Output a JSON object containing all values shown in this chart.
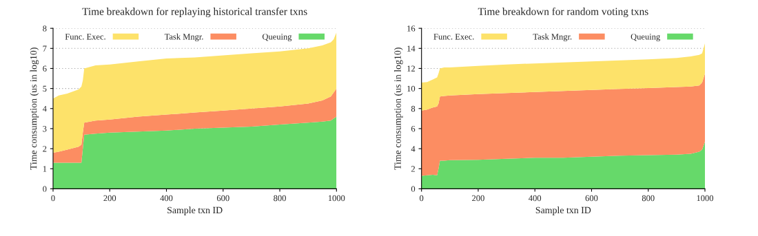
{
  "chart_data": [
    {
      "type": "area",
      "stacked": true,
      "title": "Time breakdown for replaying historical transfer txns",
      "xlabel": "Sample txn ID",
      "ylabel": "Time consumption (us in log10)",
      "x": [
        0,
        20,
        50,
        90,
        100,
        105,
        110,
        150,
        200,
        300,
        400,
        500,
        600,
        700,
        800,
        900,
        950,
        980,
        990,
        1000
      ],
      "series": [
        {
          "name": "Queuing",
          "color": "#66d96a",
          "values": [
            1.3,
            1.3,
            1.3,
            1.3,
            1.3,
            2.0,
            2.7,
            2.75,
            2.8,
            2.85,
            2.9,
            3.0,
            3.05,
            3.1,
            3.2,
            3.3,
            3.35,
            3.4,
            3.5,
            3.6
          ]
        },
        {
          "name": "Task Mngr.",
          "color": "#fc8d62",
          "values": [
            0.5,
            0.55,
            0.65,
            0.8,
            0.9,
            0.8,
            0.6,
            0.65,
            0.65,
            0.75,
            0.8,
            0.8,
            0.85,
            0.9,
            0.9,
            0.95,
            1.05,
            1.2,
            1.3,
            1.4
          ]
        },
        {
          "name": "Func. Exec.",
          "color": "#fde26a",
          "values": [
            2.7,
            2.8,
            2.8,
            2.85,
            2.9,
            2.6,
            2.7,
            2.75,
            2.75,
            2.75,
            2.8,
            2.75,
            2.75,
            2.75,
            2.75,
            2.75,
            2.75,
            2.7,
            2.65,
            2.8
          ]
        }
      ],
      "xlim": [
        0,
        1000
      ],
      "xticks": [
        0,
        200,
        400,
        600,
        800,
        1000
      ],
      "ylim": [
        0,
        8
      ],
      "yticks": [
        0,
        1,
        2,
        3,
        4,
        5,
        6,
        7,
        8
      ],
      "grid": "y",
      "legend": "top"
    },
    {
      "type": "area",
      "stacked": true,
      "title": "Time breakdown for random voting txns",
      "xlabel": "Sample txn ID",
      "ylabel": "Time consumption (us in log10)",
      "x": [
        0,
        20,
        40,
        55,
        60,
        65,
        80,
        100,
        200,
        300,
        400,
        500,
        600,
        700,
        800,
        900,
        950,
        980,
        990,
        1000
      ],
      "series": [
        {
          "name": "Queuing",
          "color": "#66d96a",
          "values": [
            1.3,
            1.35,
            1.4,
            1.35,
            2.0,
            2.8,
            2.8,
            2.85,
            2.9,
            3.0,
            3.1,
            3.1,
            3.2,
            3.3,
            3.35,
            3.4,
            3.5,
            3.7,
            3.9,
            4.7
          ]
        },
        {
          "name": "Task Mngr.",
          "color": "#fc8d62",
          "values": [
            6.5,
            6.55,
            6.7,
            6.85,
            6.5,
            6.4,
            6.45,
            6.45,
            6.55,
            6.55,
            6.55,
            6.65,
            6.65,
            6.65,
            6.7,
            6.75,
            6.7,
            6.6,
            6.7,
            6.8
          ]
        },
        {
          "name": "Func. Exec.",
          "color": "#fde26a",
          "values": [
            2.8,
            2.75,
            2.8,
            2.9,
            3.0,
            2.8,
            2.85,
            2.8,
            2.8,
            2.85,
            2.85,
            2.85,
            2.85,
            2.85,
            2.85,
            2.9,
            3.0,
            3.05,
            2.9,
            3.0
          ]
        }
      ],
      "xlim": [
        0,
        1000
      ],
      "xticks": [
        0,
        200,
        400,
        600,
        800,
        1000
      ],
      "ylim": [
        0,
        16
      ],
      "yticks": [
        0,
        2,
        4,
        6,
        8,
        10,
        12,
        14,
        16
      ],
      "grid": "y",
      "legend": "top"
    }
  ]
}
